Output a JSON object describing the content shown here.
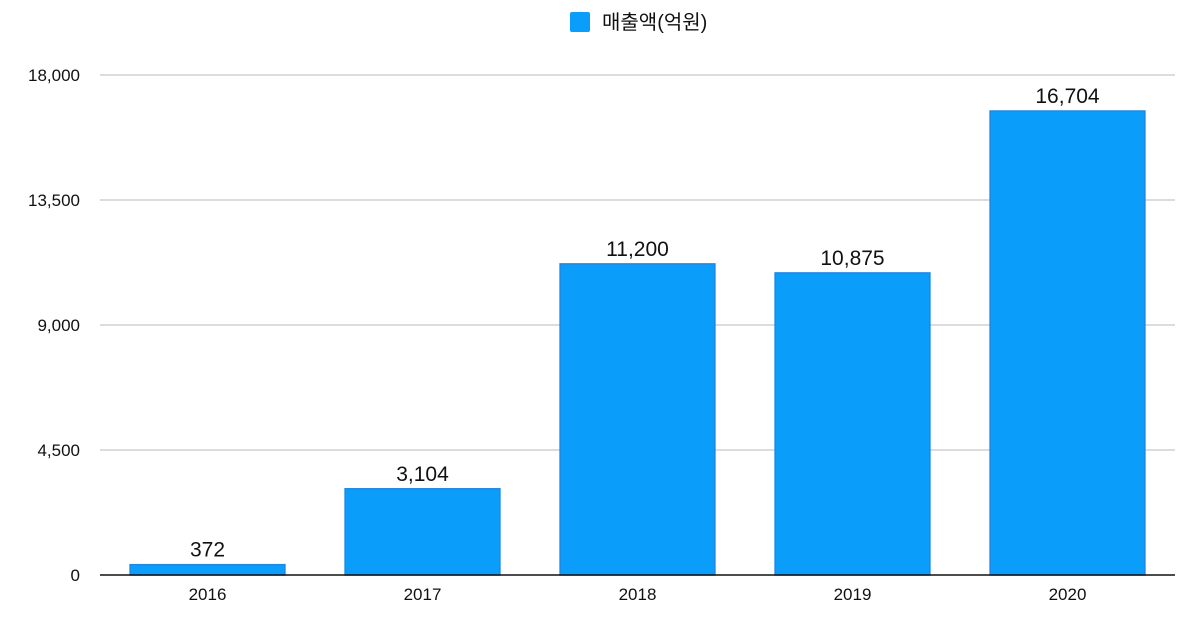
{
  "chart_data": {
    "type": "bar",
    "categories": [
      "2016",
      "2017",
      "2018",
      "2019",
      "2020"
    ],
    "series": [
      {
        "name": "매출액(억원)",
        "values": [
          372,
          3104,
          11200,
          10875,
          16704
        ],
        "color": "#0A9EFA"
      }
    ],
    "data_labels": [
      "372",
      "3,104",
      "11,200",
      "10,875",
      "16,704"
    ],
    "y_ticks": [
      0,
      4500,
      9000,
      13500,
      18000
    ],
    "y_tick_labels": [
      "0",
      "4,500",
      "9,000",
      "13,500",
      "18,000"
    ],
    "ylim": [
      0,
      18000
    ],
    "grid": true,
    "legend_position": "top-center",
    "title": "",
    "xlabel": "",
    "ylabel": ""
  }
}
